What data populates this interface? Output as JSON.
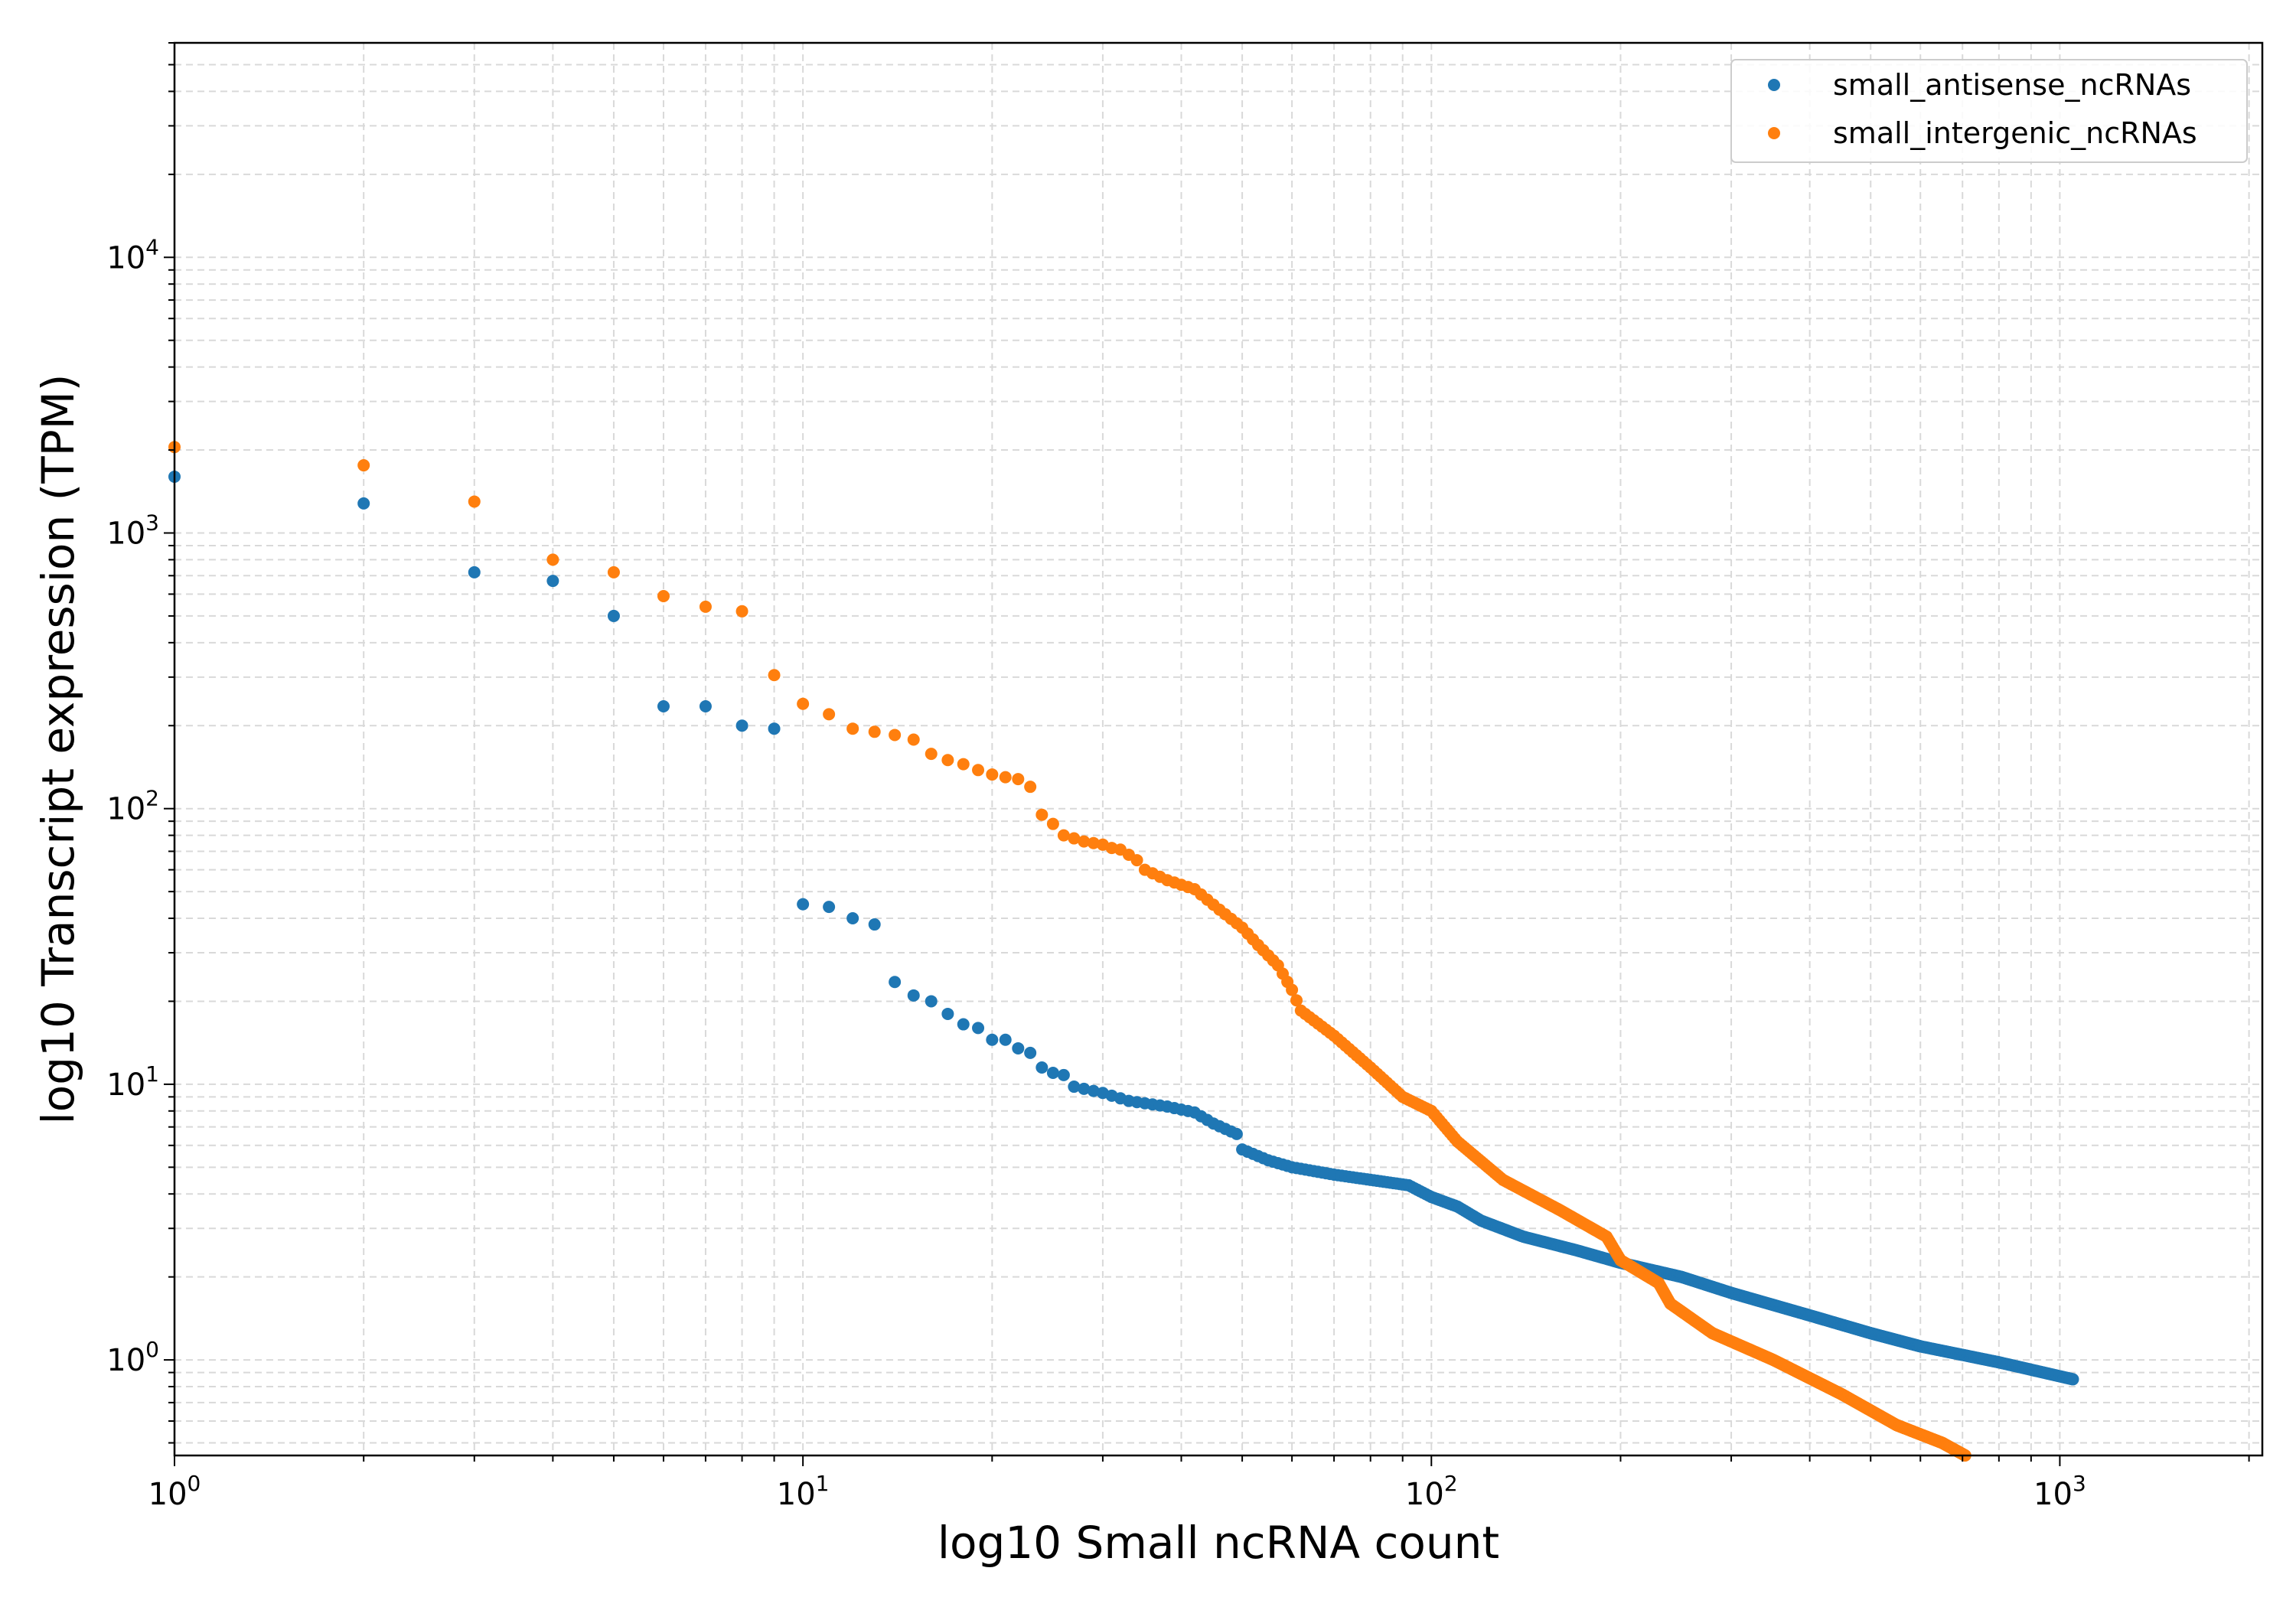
{
  "chart_data": {
    "type": "scatter",
    "title": "",
    "xlabel": "log10 Small ncRNA count",
    "ylabel": "log10 Transcript expression (TPM)",
    "xscale": "log",
    "yscale": "log",
    "xlim": [
      1,
      2100
    ],
    "ylim": [
      0.45,
      60000
    ],
    "grid": true,
    "legend_position": "top-right",
    "x_ticks": [
      {
        "value": 1,
        "base": "10",
        "exp": "0"
      },
      {
        "value": 10,
        "base": "10",
        "exp": "1"
      },
      {
        "value": 100,
        "base": "10",
        "exp": "2"
      },
      {
        "value": 1000,
        "base": "10",
        "exp": "3"
      }
    ],
    "y_ticks": [
      {
        "value": 1,
        "base": "10",
        "exp": "0"
      },
      {
        "value": 10,
        "base": "10",
        "exp": "1"
      },
      {
        "value": 100,
        "base": "10",
        "exp": "2"
      },
      {
        "value": 1000,
        "base": "10",
        "exp": "3"
      },
      {
        "value": 10000,
        "base": "10",
        "exp": "4"
      }
    ],
    "series": [
      {
        "name": "small_antisense_ncRNAs",
        "color": "#1f77b4",
        "points": [
          [
            1,
            1600
          ],
          [
            2,
            1280
          ],
          [
            3,
            720
          ],
          [
            4,
            670
          ],
          [
            5,
            500
          ],
          [
            6,
            235
          ],
          [
            7,
            235
          ],
          [
            8,
            200
          ],
          [
            9,
            195
          ],
          [
            10,
            45
          ],
          [
            11,
            44
          ],
          [
            12,
            40
          ],
          [
            13,
            38
          ],
          [
            14,
            23.5
          ],
          [
            15,
            21
          ],
          [
            16,
            20
          ],
          [
            17,
            18
          ],
          [
            18,
            16.5
          ],
          [
            19,
            16
          ],
          [
            20,
            14.5
          ],
          [
            21,
            14.5
          ],
          [
            22,
            13.5
          ],
          [
            23,
            13
          ],
          [
            24,
            11.5
          ],
          [
            25,
            11
          ],
          [
            26,
            10.8
          ]
        ],
        "anchors": [
          [
            26,
            10.8
          ],
          [
            27,
            9.8
          ],
          [
            30,
            9.3
          ],
          [
            33,
            8.7
          ],
          [
            38,
            8.3
          ],
          [
            42,
            7.9
          ],
          [
            45,
            7.2
          ],
          [
            49,
            6.6
          ],
          [
            50,
            5.8
          ],
          [
            55,
            5.3
          ],
          [
            60,
            5.0
          ],
          [
            70,
            4.7
          ],
          [
            80,
            4.5
          ],
          [
            92,
            4.3
          ],
          [
            100,
            3.9
          ],
          [
            110,
            3.6
          ],
          [
            120,
            3.2
          ],
          [
            140,
            2.8
          ],
          [
            170,
            2.5
          ],
          [
            200,
            2.25
          ],
          [
            250,
            2.0
          ],
          [
            300,
            1.75
          ],
          [
            400,
            1.45
          ],
          [
            500,
            1.25
          ],
          [
            600,
            1.12
          ],
          [
            800,
            0.98
          ],
          [
            1050,
            0.85
          ]
        ]
      },
      {
        "name": "small_intergenic_ncRNAs",
        "color": "#ff7f0e",
        "points": [
          [
            1,
            2050
          ],
          [
            2,
            1760
          ],
          [
            3,
            1300
          ],
          [
            4,
            800
          ],
          [
            5,
            720
          ],
          [
            6,
            590
          ],
          [
            7,
            540
          ],
          [
            8,
            520
          ],
          [
            9,
            305
          ],
          [
            10,
            240
          ],
          [
            11,
            220
          ],
          [
            12,
            195
          ],
          [
            13,
            190
          ],
          [
            14,
            185
          ],
          [
            15,
            178
          ],
          [
            16,
            158
          ],
          [
            17,
            150
          ],
          [
            18,
            145
          ],
          [
            19,
            138
          ],
          [
            20,
            133
          ],
          [
            21,
            130
          ],
          [
            22,
            128
          ],
          [
            23,
            120
          ],
          [
            24,
            95
          ],
          [
            25,
            88
          ],
          [
            26,
            80
          ],
          [
            27,
            78
          ],
          [
            28,
            76
          ],
          [
            29,
            75
          ],
          [
            30,
            74
          ],
          [
            31,
            72
          ],
          [
            32,
            71
          ],
          [
            33,
            68
          ],
          [
            34,
            65
          ],
          [
            35,
            60
          ]
        ],
        "anchors": [
          [
            35,
            60
          ],
          [
            38,
            55
          ],
          [
            42,
            51
          ],
          [
            46,
            43
          ],
          [
            50,
            37
          ],
          [
            53,
            32
          ],
          [
            57,
            27
          ],
          [
            60,
            22
          ],
          [
            62,
            18.5
          ],
          [
            70,
            15
          ],
          [
            80,
            11.5
          ],
          [
            90,
            9
          ],
          [
            100,
            8
          ],
          [
            110,
            6.2
          ],
          [
            130,
            4.5
          ],
          [
            160,
            3.5
          ],
          [
            190,
            2.8
          ],
          [
            200,
            2.3
          ],
          [
            230,
            1.9
          ],
          [
            240,
            1.6
          ],
          [
            280,
            1.25
          ],
          [
            350,
            1.0
          ],
          [
            450,
            0.75
          ],
          [
            550,
            0.58
          ],
          [
            650,
            0.5
          ],
          [
            720,
            0.44
          ]
        ]
      }
    ]
  }
}
